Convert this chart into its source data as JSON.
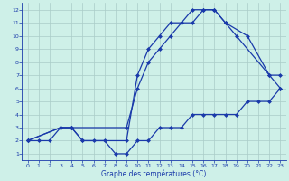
{
  "xlabel": "Graphe des températures (°C)",
  "bg_color": "#cef0e8",
  "grid_color": "#aaccc8",
  "line_color": "#1a3aaa",
  "xlim": [
    -0.5,
    23.5
  ],
  "ylim": [
    0.5,
    12.5
  ],
  "xticks": [
    0,
    1,
    2,
    3,
    4,
    5,
    6,
    7,
    8,
    9,
    10,
    11,
    12,
    13,
    14,
    15,
    16,
    17,
    18,
    19,
    20,
    21,
    22,
    23
  ],
  "yticks": [
    1,
    2,
    3,
    4,
    5,
    6,
    7,
    8,
    9,
    10,
    11,
    12
  ],
  "series1_x": [
    0,
    1,
    2,
    3,
    4,
    5,
    6,
    7,
    8,
    9,
    10,
    11,
    12,
    13,
    14,
    15,
    16,
    17,
    18,
    19,
    20,
    21,
    22,
    23
  ],
  "series1_y": [
    2,
    2,
    2,
    3,
    3,
    2,
    2,
    2,
    1,
    1,
    2,
    2,
    3,
    3,
    3,
    4,
    4,
    4,
    4,
    4,
    5,
    5,
    5,
    6
  ],
  "series2_x": [
    0,
    3,
    4,
    9,
    10,
    11,
    12,
    13,
    14,
    15,
    16,
    17,
    18,
    20,
    22,
    23
  ],
  "series2_y": [
    2,
    3,
    3,
    3,
    6,
    8,
    9,
    10,
    11,
    11,
    12,
    12,
    11,
    10,
    7,
    6
  ],
  "series3_x": [
    0,
    3,
    4,
    5,
    9,
    10,
    11,
    12,
    13,
    14,
    15,
    16,
    17,
    18,
    19,
    22,
    23
  ],
  "series3_y": [
    2,
    3,
    3,
    2,
    2,
    7,
    9,
    10,
    11,
    11,
    12,
    12,
    12,
    11,
    10,
    7,
    7
  ]
}
